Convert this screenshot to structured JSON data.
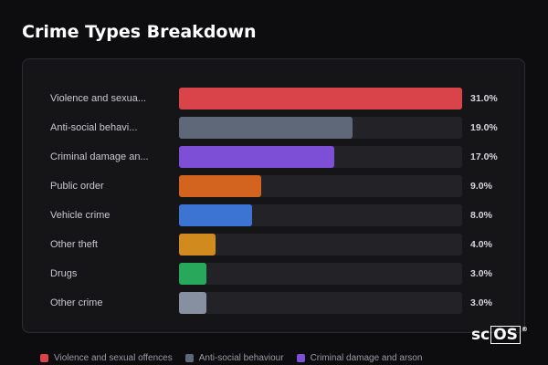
{
  "chart_data": {
    "type": "bar",
    "orientation": "horizontal",
    "title": "Crime Types Breakdown",
    "categories": [
      "Violence and sexua...",
      "Anti-social behavi...",
      "Criminal damage an...",
      "Public order",
      "Vehicle crime",
      "Other theft",
      "Drugs",
      "Other crime"
    ],
    "values": [
      31.0,
      19.0,
      17.0,
      9.0,
      8.0,
      4.0,
      3.0,
      3.0
    ],
    "value_labels": [
      "31.0%",
      "19.0%",
      "17.0%",
      "9.0%",
      "8.0%",
      "4.0%",
      "3.0%",
      "3.0%"
    ],
    "colors": [
      "#d9434a",
      "#5f6878",
      "#7d4fd6",
      "#d2641f",
      "#3c74d4",
      "#d08a1e",
      "#27a85a",
      "#8790a1"
    ],
    "xlim": [
      0,
      31.0
    ],
    "grid": false,
    "legend": {
      "placement": "bottom",
      "entries": [
        {
          "label": "Violence and sexual offences",
          "color": "#d9434a"
        },
        {
          "label": "Anti-social behaviour",
          "color": "#5f6878"
        },
        {
          "label": "Criminal damage and arson",
          "color": "#7d4fd6"
        }
      ]
    }
  },
  "logo": {
    "prefix": "sc",
    "boxed": "OS",
    "mark": "®"
  }
}
